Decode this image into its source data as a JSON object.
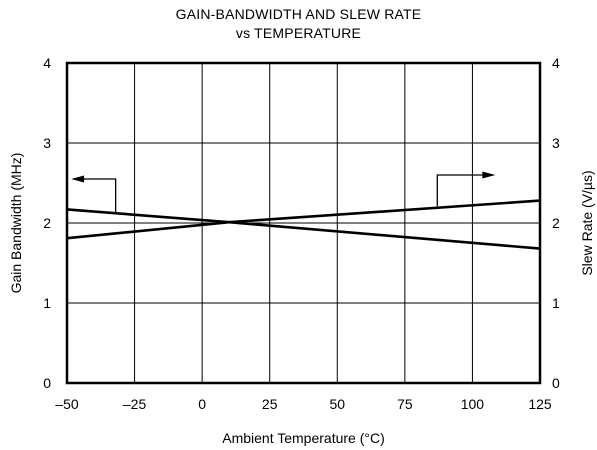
{
  "chart_data": {
    "type": "line",
    "title_line1": "GAIN-BANDWIDTH AND SLEW RATE",
    "title_line2": "vs TEMPERATURE",
    "xlabel": "Ambient Temperature (°C)",
    "ylabel_left": "Gain Bandwidth (MHz)",
    "ylabel_right": "Slew Rate (V/µs)",
    "xlim": [
      -50,
      125
    ],
    "ylim": [
      0,
      4
    ],
    "x_ticks": [
      "–50",
      "–25",
      "0",
      "25",
      "50",
      "75",
      "100",
      "125"
    ],
    "x_tick_values": [
      -50,
      -25,
      0,
      25,
      50,
      75,
      100,
      125
    ],
    "y_ticks": [
      "0",
      "1",
      "2",
      "3",
      "4"
    ],
    "y_tick_values": [
      0,
      1,
      2,
      3,
      4
    ],
    "grid": true,
    "series": [
      {
        "axis": "left",
        "x": [
          -50,
          10,
          125
        ],
        "values": [
          2.17,
          2.01,
          1.68
        ]
      },
      {
        "axis": "right",
        "x": [
          -50,
          10,
          125
        ],
        "values": [
          1.81,
          2.01,
          2.28
        ]
      }
    ]
  }
}
